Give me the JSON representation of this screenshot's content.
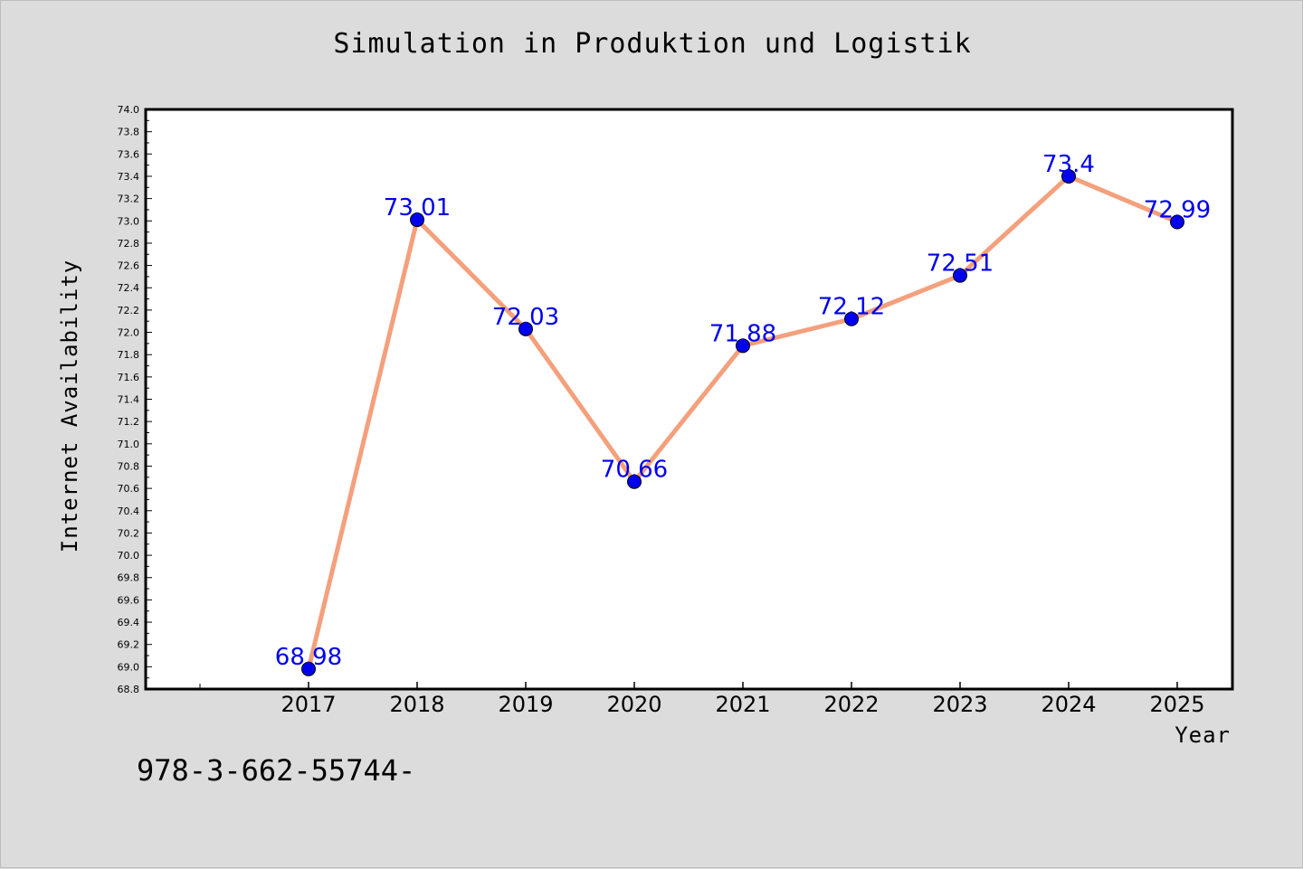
{
  "title": "Simulation in Produktion und Logistik",
  "footer_text": "978-3-662-55744-",
  "colors": {
    "background": "#dcdcdc",
    "plot_area": "#ffffff",
    "line": "#f4a07c",
    "marker": "#0000ee",
    "data_label": "#0000ee"
  },
  "chart_data": {
    "type": "line",
    "title": "Simulation in Produktion und Logistik",
    "xlabel": "Year",
    "ylabel": "Internet Availability",
    "categories": [
      "2017",
      "2018",
      "2019",
      "2020",
      "2021",
      "2022",
      "2023",
      "2024",
      "2025"
    ],
    "series": [
      {
        "values": [
          68.98,
          73.01,
          72.03,
          70.66,
          71.88,
          72.12,
          72.51,
          73.4,
          72.99
        ],
        "labels": [
          "68.98",
          "73.01",
          "72.03",
          "70.66",
          "71.88",
          "72.12",
          "72.51",
          "73.4",
          "72.99"
        ]
      }
    ],
    "ylim": [
      68.8,
      74.0
    ],
    "ytick_step": 0.2,
    "yticks": [
      "68.8",
      "69.0",
      "69.2",
      "69.4",
      "69.6",
      "69.8",
      "70.0",
      "70.2",
      "70.4",
      "70.6",
      "70.8",
      "71.0",
      "71.2",
      "71.4",
      "71.6",
      "71.8",
      "72.0",
      "72.2",
      "72.4",
      "72.6",
      "72.8",
      "73.0",
      "73.2",
      "73.4",
      "73.6",
      "73.8",
      "74.0"
    ],
    "grid": false,
    "legend": "none"
  }
}
